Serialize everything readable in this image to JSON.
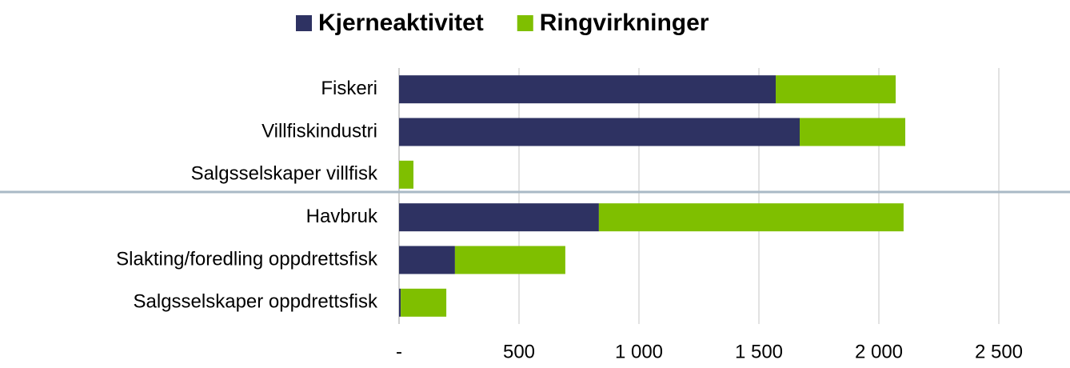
{
  "chart_data": {
    "type": "bar",
    "orientation": "horizontal",
    "stacked": true,
    "categories": [
      "Fiskeri",
      "Villfiskindustri",
      "Salgsselskaper villfisk",
      "Havbruk",
      "Slakting/foredling oppdrettsfisk",
      "Salgsselskaper oppdrettsfisk"
    ],
    "series": [
      {
        "name": "Kjerneaktivitet",
        "color": "#2e3262",
        "values": [
          1570,
          1670,
          0,
          833,
          233,
          7
        ]
      },
      {
        "name": "Ringvirkninger",
        "color": "#7fbf00",
        "values": [
          500,
          440,
          60,
          1270,
          460,
          190
        ]
      }
    ],
    "xlim": [
      0,
      2750
    ],
    "xticks": [
      {
        "value": 0,
        "label": "-"
      },
      500,
      {
        "value": 1000,
        "label": "1 000"
      },
      {
        "value": 1500,
        "label": "1 500"
      },
      {
        "value": 2000,
        "label": "2 000"
      },
      {
        "value": 2500,
        "label": "2 500"
      }
    ],
    "grid": true,
    "legend": "top"
  }
}
